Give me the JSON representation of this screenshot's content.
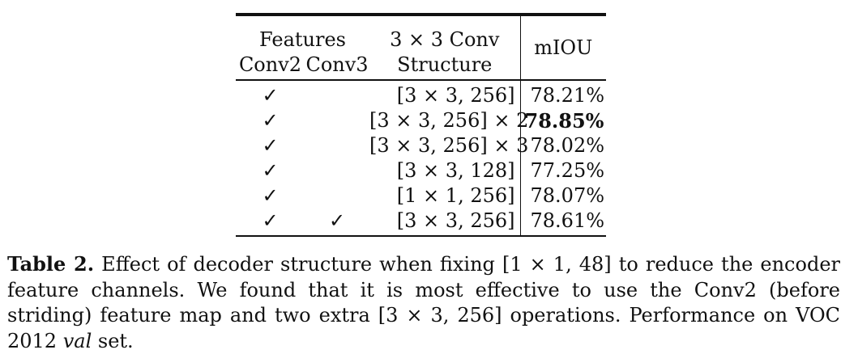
{
  "table": {
    "header": {
      "features_label": "Features",
      "conv2_label": "Conv2",
      "conv3_label": "Conv3",
      "structure_label_line1": "3 × 3 Conv",
      "structure_label_line2": "Structure",
      "miou_label": "mIOU"
    },
    "rows": [
      {
        "conv2": "✓",
        "conv3": "",
        "structure": "[3 × 3, 256]",
        "miou": "78.21%",
        "bold": false
      },
      {
        "conv2": "✓",
        "conv3": "",
        "structure": "[3 × 3, 256] × 2",
        "miou": "78.85%",
        "bold": true
      },
      {
        "conv2": "✓",
        "conv3": "",
        "structure": "[3 × 3, 256] × 3",
        "miou": "78.02%",
        "bold": false
      },
      {
        "conv2": "✓",
        "conv3": "",
        "structure": "[3 × 3, 128]",
        "miou": "77.25%",
        "bold": false
      },
      {
        "conv2": "✓",
        "conv3": "",
        "structure": "[1 × 1, 256]",
        "miou": "78.07%",
        "bold": false
      },
      {
        "conv2": "✓",
        "conv3": "✓",
        "structure": "[3 × 3, 256]",
        "miou": "78.61%",
        "bold": false
      }
    ]
  },
  "caption": {
    "label": "Table 2.",
    "text_part1": " Effect of decoder structure when fixing [1 × 1, 48] to reduce the encoder feature channels. We found that it is most effective to use the Conv2 (before striding) feature map and two extra [3 × 3, 256] operations. Performance on VOC 2012 ",
    "italic": "val",
    "text_part2": " set."
  }
}
